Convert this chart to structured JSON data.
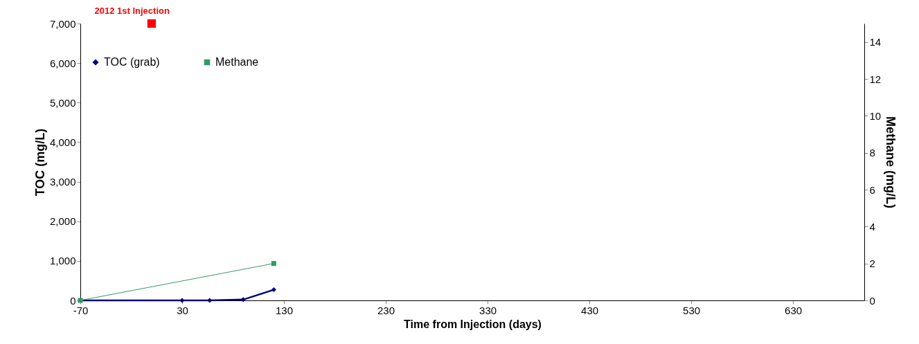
{
  "chart_data": {
    "type": "line",
    "xlabel": "Time from Injection (days)",
    "ylabel": "TOC (mg/L)",
    "y2label": "Methane (mg/L)",
    "xlim": [
      -70,
      700
    ],
    "xticks": [
      -70,
      30,
      130,
      230,
      330,
      430,
      530,
      630
    ],
    "ylim": [
      0,
      7000
    ],
    "yticks": [
      0,
      {
        "value": 1000,
        "label": "1,000"
      },
      {
        "value": 2000,
        "label": "2,000"
      },
      {
        "value": 3000,
        "label": "3,000"
      },
      {
        "value": 4000,
        "label": "4,000"
      },
      {
        "value": 5000,
        "label": "5,000"
      },
      {
        "value": 6000,
        "label": "6,000"
      },
      {
        "value": 7000,
        "label": "7,000"
      }
    ],
    "y2lim": [
      0,
      15
    ],
    "y2ticks": [
      0,
      2,
      4,
      6,
      8,
      10,
      12,
      14
    ],
    "grid": false,
    "legend": "top left",
    "series": [
      {
        "name": "TOC (grab)",
        "color": "#000080",
        "marker": "diamond",
        "x": [
          -70,
          30,
          57,
          90,
          120
        ],
        "values": [
          0,
          0,
          0,
          20,
          270
        ]
      },
      {
        "name": "Methane",
        "color": "#339966",
        "marker": "square",
        "axis": "y2",
        "x": [
          -70,
          120
        ],
        "values": [
          0,
          2
        ]
      },
      {
        "name": "2012 1st Injection",
        "type": "scatter",
        "color": "#ff0000",
        "marker": "square",
        "x": [
          0
        ],
        "values": [
          7000
        ]
      }
    ]
  }
}
